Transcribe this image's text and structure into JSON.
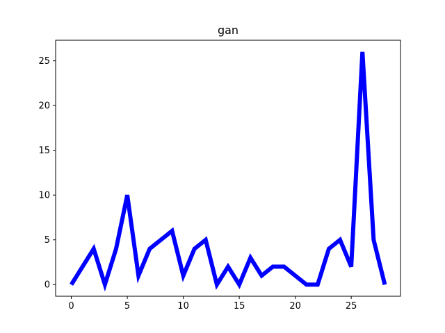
{
  "chart_data": {
    "type": "line",
    "title": "gan",
    "xlabel": "",
    "ylabel": "",
    "x": [
      0,
      1,
      2,
      3,
      4,
      5,
      6,
      7,
      8,
      9,
      10,
      11,
      12,
      13,
      14,
      15,
      16,
      17,
      18,
      19,
      20,
      21,
      22,
      23,
      24,
      25,
      26,
      27,
      28
    ],
    "series": [
      {
        "values": [
          0,
          2,
          4,
          0,
          4,
          10,
          1,
          4,
          5,
          6,
          1,
          4,
          5,
          0,
          2,
          0,
          3,
          1,
          2,
          2,
          1,
          0,
          0,
          4,
          5,
          2,
          26,
          5,
          0
        ],
        "color": "#0000ff"
      }
    ],
    "xlim": [
      -1.4,
      29.4
    ],
    "ylim": [
      -1.3,
      27.3
    ],
    "xticks": [
      0,
      5,
      10,
      15,
      20,
      25
    ],
    "yticks": [
      0,
      5,
      10,
      15,
      20,
      25
    ],
    "grid": false
  }
}
